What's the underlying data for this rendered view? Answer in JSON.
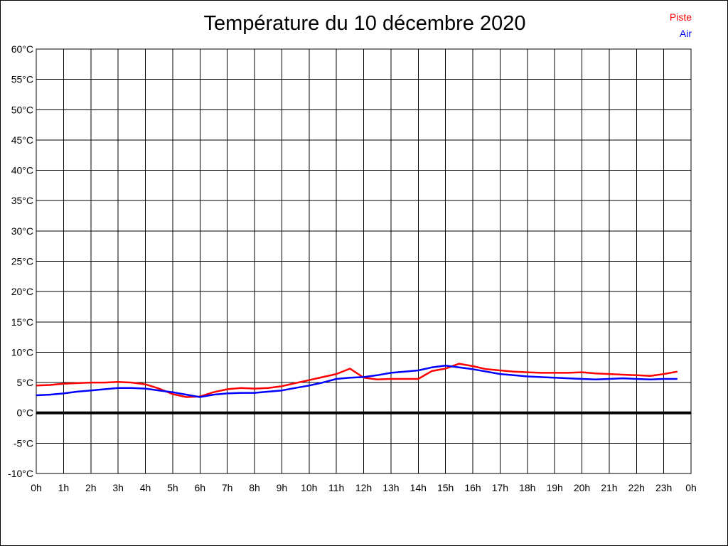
{
  "title": "Température du 10 décembre 2020",
  "legend": {
    "items": [
      {
        "label": "Piste",
        "color": "#ff0000"
      },
      {
        "label": "Air",
        "color": "#0000ff"
      }
    ]
  },
  "chart_data": {
    "type": "line",
    "title": "Température du 10 décembre 2020",
    "xlabel": "",
    "ylabel": "",
    "x_unit": "hours",
    "xlim": [
      0,
      24
    ],
    "ylim": [
      -10,
      60
    ],
    "grid": "on",
    "zero_line": true,
    "legend_position": "top-right",
    "y_tick_step": 5,
    "y_tick_labels": [
      "60°C",
      "55°C",
      "50°C",
      "45°C",
      "40°C",
      "35°C",
      "30°C",
      "25°C",
      "20°C",
      "15°C",
      "10°C",
      "5°C",
      "0°C",
      "-5°C",
      "-10°C"
    ],
    "y_tick_values": [
      60,
      55,
      50,
      45,
      40,
      35,
      30,
      25,
      20,
      15,
      10,
      5,
      0,
      -5,
      -10
    ],
    "x_tick_labels": [
      "0h",
      "1h",
      "2h",
      "3h",
      "4h",
      "5h",
      "6h",
      "7h",
      "8h",
      "9h",
      "10h",
      "11h",
      "12h",
      "13h",
      "14h",
      "15h",
      "16h",
      "17h",
      "18h",
      "19h",
      "20h",
      "21h",
      "22h",
      "23h",
      "0h"
    ],
    "x_tick_values": [
      0,
      1,
      2,
      3,
      4,
      5,
      6,
      7,
      8,
      9,
      10,
      11,
      12,
      13,
      14,
      15,
      16,
      17,
      18,
      19,
      20,
      21,
      22,
      23,
      24
    ],
    "x": [
      0,
      0.5,
      1,
      1.5,
      2,
      2.5,
      3,
      3.5,
      4,
      4.5,
      5,
      5.5,
      6,
      6.5,
      7,
      7.5,
      8,
      8.5,
      9,
      9.5,
      10,
      10.5,
      11,
      11.5,
      12,
      12.5,
      13,
      13.5,
      14,
      14.5,
      15,
      15.5,
      16,
      16.5,
      17,
      17.5,
      18,
      18.5,
      19,
      19.5,
      20,
      20.5,
      21,
      21.5,
      22,
      22.5,
      23,
      23.5
    ],
    "series": [
      {
        "name": "Piste",
        "color": "#ff0000",
        "values": [
          4.5,
          4.6,
          4.8,
          4.9,
          5.0,
          5.0,
          5.1,
          5.0,
          4.7,
          4.0,
          3.1,
          2.6,
          2.7,
          3.4,
          3.9,
          4.1,
          4.0,
          4.1,
          4.4,
          4.9,
          5.4,
          5.9,
          6.4,
          7.3,
          5.8,
          5.5,
          5.6,
          5.6,
          5.6,
          6.9,
          7.3,
          8.1,
          7.7,
          7.2,
          7.0,
          6.8,
          6.7,
          6.6,
          6.6,
          6.6,
          6.7,
          6.5,
          6.4,
          6.3,
          6.2,
          6.1,
          6.4,
          6.8
        ]
      },
      {
        "name": "Air",
        "color": "#0000ff",
        "values": [
          2.9,
          3.0,
          3.2,
          3.5,
          3.7,
          3.9,
          4.1,
          4.1,
          4.0,
          3.7,
          3.4,
          3.0,
          2.6,
          3.0,
          3.2,
          3.3,
          3.3,
          3.5,
          3.7,
          4.1,
          4.5,
          5.0,
          5.6,
          5.8,
          5.9,
          6.2,
          6.6,
          6.8,
          7.0,
          7.5,
          7.8,
          7.5,
          7.2,
          6.8,
          6.4,
          6.2,
          6.0,
          5.9,
          5.8,
          5.7,
          5.6,
          5.5,
          5.6,
          5.7,
          5.6,
          5.5,
          5.6,
          5.6
        ]
      }
    ]
  }
}
